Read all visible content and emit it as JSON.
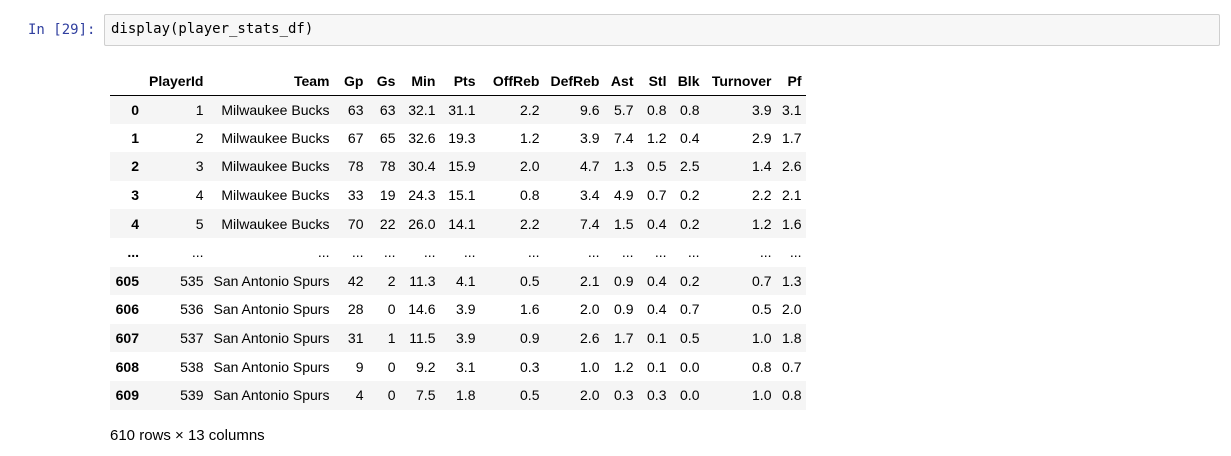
{
  "cell": {
    "prompt": "In [29]:",
    "code": "display(player_stats_df)"
  },
  "table": {
    "columns": [
      "",
      "PlayerId",
      "Team",
      "Gp",
      "Gs",
      "Min",
      "Pts",
      "OffReb",
      "DefReb",
      "Ast",
      "Stl",
      "Blk",
      "Turnover",
      "Pf"
    ],
    "rows": [
      [
        "0",
        "1",
        "Milwaukee Bucks",
        "63",
        "63",
        "32.1",
        "31.1",
        "2.2",
        "9.6",
        "5.7",
        "0.8",
        "0.8",
        "3.9",
        "3.1"
      ],
      [
        "1",
        "2",
        "Milwaukee Bucks",
        "67",
        "65",
        "32.6",
        "19.3",
        "1.2",
        "3.9",
        "7.4",
        "1.2",
        "0.4",
        "2.9",
        "1.7"
      ],
      [
        "2",
        "3",
        "Milwaukee Bucks",
        "78",
        "78",
        "30.4",
        "15.9",
        "2.0",
        "4.7",
        "1.3",
        "0.5",
        "2.5",
        "1.4",
        "2.6"
      ],
      [
        "3",
        "4",
        "Milwaukee Bucks",
        "33",
        "19",
        "24.3",
        "15.1",
        "0.8",
        "3.4",
        "4.9",
        "0.7",
        "0.2",
        "2.2",
        "2.1"
      ],
      [
        "4",
        "5",
        "Milwaukee Bucks",
        "70",
        "22",
        "26.0",
        "14.1",
        "2.2",
        "7.4",
        "1.5",
        "0.4",
        "0.2",
        "1.2",
        "1.6"
      ],
      [
        "...",
        "...",
        "...",
        "...",
        "...",
        "...",
        "...",
        "...",
        "...",
        "...",
        "...",
        "...",
        "...",
        "..."
      ],
      [
        "605",
        "535",
        "San Antonio Spurs",
        "42",
        "2",
        "11.3",
        "4.1",
        "0.5",
        "2.1",
        "0.9",
        "0.4",
        "0.2",
        "0.7",
        "1.3"
      ],
      [
        "606",
        "536",
        "San Antonio Spurs",
        "28",
        "0",
        "14.6",
        "3.9",
        "1.6",
        "2.0",
        "0.9",
        "0.4",
        "0.7",
        "0.5",
        "2.0"
      ],
      [
        "607",
        "537",
        "San Antonio Spurs",
        "31",
        "1",
        "11.5",
        "3.9",
        "0.9",
        "2.6",
        "1.7",
        "0.1",
        "0.5",
        "1.0",
        "1.8"
      ],
      [
        "608",
        "538",
        "San Antonio Spurs",
        "9",
        "0",
        "9.2",
        "3.1",
        "0.3",
        "1.0",
        "1.2",
        "0.1",
        "0.0",
        "0.8",
        "0.7"
      ],
      [
        "609",
        "539",
        "San Antonio Spurs",
        "4",
        "0",
        "7.5",
        "1.8",
        "0.5",
        "2.0",
        "0.3",
        "0.3",
        "0.0",
        "1.0",
        "0.8"
      ]
    ]
  },
  "summary": "610 rows × 13 columns"
}
